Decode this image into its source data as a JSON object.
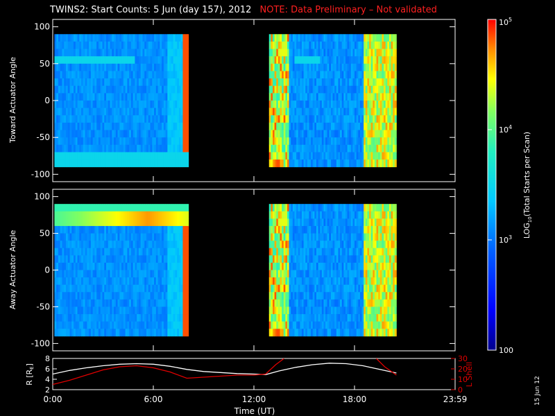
{
  "header": {
    "title": "TWINS2: Start Counts:  5 Jun (day 157), 2012",
    "note": "NOTE: Data Preliminary – Not validated"
  },
  "stamp": "15 Jun 12",
  "colors": {
    "background": "#000000",
    "axes": "#ffffff",
    "note": "#ff2020",
    "lshell": "#e00000",
    "radius": "#ffffff"
  },
  "chart_data": [
    {
      "type": "heatmap",
      "panel": "top",
      "ylabel": "Toward Actuator Angle",
      "xlim": [
        0,
        24
      ],
      "ylim": [
        -110,
        110
      ],
      "yticks": [
        100,
        50,
        0,
        -50,
        -100
      ],
      "data_windows_hours": [
        [
          0.1,
          8.1
        ],
        [
          12.9,
          20.5
        ]
      ],
      "colorscale": "log",
      "colormap": "rainbow"
    },
    {
      "type": "heatmap",
      "panel": "middle",
      "ylabel": "Away Actuator Angle",
      "xlim": [
        0,
        24
      ],
      "ylim": [
        -110,
        110
      ],
      "yticks": [
        100,
        50,
        0,
        -50,
        -100
      ],
      "data_windows_hours": [
        [
          0.1,
          8.1
        ],
        [
          12.9,
          20.5
        ]
      ],
      "colorscale": "log",
      "colormap": "rainbow"
    },
    {
      "type": "line",
      "panel": "bottom",
      "xlabel": "Time (UT)",
      "xlim": [
        0,
        24
      ],
      "xticks": [
        "0:00",
        "6:00",
        "12:00",
        "18:00",
        "23:59"
      ],
      "left_axis": {
        "label": "R [R",
        "label_sub": "E",
        "label_end": "]",
        "ylim": [
          2,
          8
        ],
        "yticks": [
          "2",
          "4",
          "6",
          "8"
        ]
      },
      "right_axis": {
        "label": "L Shell",
        "ylim": [
          0,
          30
        ],
        "yticks": [
          "0",
          "10",
          "20",
          "30"
        ]
      },
      "series": [
        {
          "axis": "left",
          "color": "#ffffff",
          "x": [
            0,
            1,
            2,
            3,
            4,
            5,
            6,
            7,
            8,
            9,
            10,
            11,
            12,
            12.7,
            13.5,
            14.5,
            15.5,
            16.5,
            17.5,
            18.5,
            19.5,
            20.5
          ],
          "y": [
            5.0,
            5.7,
            6.2,
            6.6,
            6.9,
            7.0,
            6.9,
            6.5,
            5.9,
            5.5,
            5.3,
            5.1,
            5.0,
            4.9,
            5.6,
            6.3,
            6.8,
            7.1,
            7.0,
            6.6,
            5.9,
            5.2
          ]
        },
        {
          "axis": "right",
          "color": "#e00000",
          "x": [
            0,
            1,
            2,
            3,
            4,
            5,
            6,
            7,
            8,
            9,
            10,
            11,
            12,
            12.7,
            13.3,
            13.8
          ],
          "y": [
            5,
            9,
            14,
            19,
            22,
            23,
            21,
            17,
            11,
            12,
            13,
            14,
            14,
            15,
            24,
            30
          ]
        },
        {
          "axis": "right",
          "color": "#e00000",
          "x": [
            19.3,
            19.8,
            20.5
          ],
          "y": [
            30,
            22,
            14
          ]
        }
      ]
    }
  ],
  "colorbar": {
    "label_pre": "LOG",
    "label_sub": "10",
    "label_post": "(Total Starts per Scan)",
    "range": [
      100,
      100000
    ],
    "ticks": [
      {
        "value": 100,
        "main": "100",
        "sup": ""
      },
      {
        "value": 1000,
        "main": "10",
        "sup": "3"
      },
      {
        "value": 10000,
        "main": "10",
        "sup": "4"
      },
      {
        "value": 100000,
        "main": "10",
        "sup": "5"
      }
    ]
  }
}
